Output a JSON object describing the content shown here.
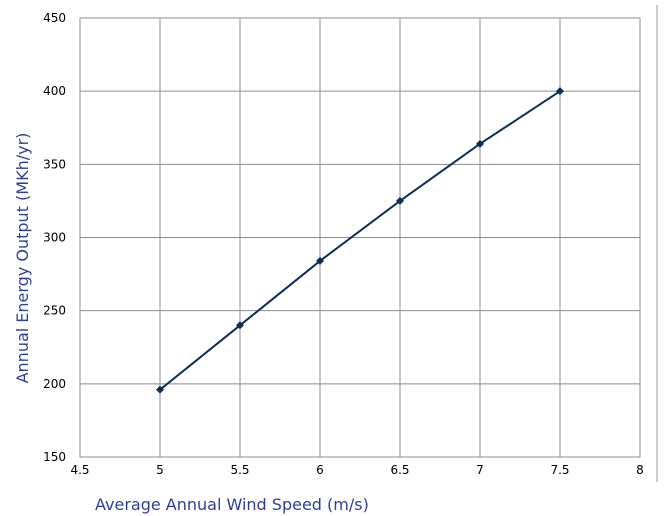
{
  "chart_data": {
    "type": "line",
    "title": "",
    "xlabel": "Average Annual Wind Speed (m/s)",
    "ylabel": "Annual Energy Output (MKh/yr)",
    "xlim": [
      4.5,
      8
    ],
    "ylim": [
      150,
      450
    ],
    "x_ticks": [
      "4.5",
      "5",
      "5.5",
      "6",
      "6.5",
      "7",
      "7.5",
      "8"
    ],
    "y_ticks": [
      "150",
      "200",
      "250",
      "300",
      "350",
      "400",
      "450"
    ],
    "grid": true,
    "legend": "none",
    "series": [
      {
        "x": [
          5,
          5.5,
          6,
          6.5,
          7,
          7.5
        ],
        "y": [
          196,
          240,
          284,
          325,
          364,
          400
        ],
        "color": "#0d2d5e"
      }
    ],
    "colors": {
      "axis_title": "#2e3f9a",
      "grid": "#8c8c8c",
      "line": "#0d2d5e"
    }
  }
}
